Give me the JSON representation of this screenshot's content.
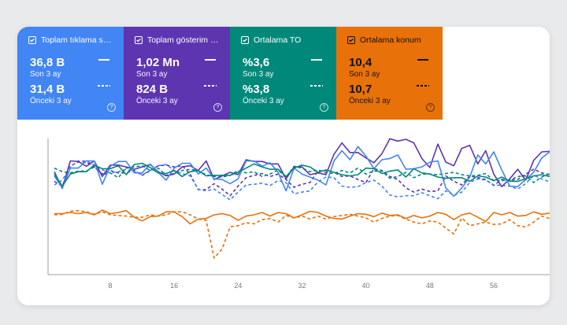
{
  "metrics": [
    {
      "title": "Toplam tıklama s…",
      "current": "36,8 B",
      "current_label": "Son 3 ay",
      "previous": "31,4 B",
      "previous_label": "Önceki 3 ay",
      "color": "#4285f4",
      "dark_text": false
    },
    {
      "title": "Toplam gösterim …",
      "current": "1,02 Mn",
      "current_label": "Son 3 ay",
      "previous": "824 B",
      "previous_label": "Önceki 3 ay",
      "color": "#5e35b1",
      "dark_text": false
    },
    {
      "title": "Ortalama TO",
      "current": "%3,6",
      "current_label": "Son 3 ay",
      "previous": "%3,8",
      "previous_label": "Önceki 3 ay",
      "color": "#00897b",
      "dark_text": false
    },
    {
      "title": "Ortalama konum",
      "current": "10,4",
      "current_label": "Son 3 ay",
      "previous": "10,7",
      "previous_label": "Önceki 3 ay",
      "color": "#e8710a",
      "dark_text": true
    }
  ],
  "chart_data": {
    "type": "line",
    "x_ticks": [
      "8",
      "16",
      "24",
      "32",
      "40",
      "48",
      "56"
    ],
    "xlim": [
      1,
      63
    ],
    "series": [
      {
        "color": "#5e35b1",
        "dash": false,
        "values": [
          62,
          34,
          80,
          79,
          71,
          80,
          54,
          73,
          73,
          70,
          66,
          70,
          74,
          62,
          55,
          58,
          70,
          72,
          64,
          80,
          49,
          55,
          61,
          57,
          82,
          79,
          79,
          75,
          75,
          50,
          70,
          70,
          57,
          60,
          57,
          91,
          110,
          94,
          94,
          85,
          77,
          92,
          117,
          113,
          116,
          110,
          84,
          69,
          108,
          78,
          72,
          101,
          106,
          75,
          97,
          58,
          37,
          50,
          66,
          48,
          81,
          95,
          96,
          80
        ]
      },
      {
        "color": "#4285f4",
        "dash": false,
        "values": [
          55,
          35,
          68,
          68,
          80,
          80,
          41,
          71,
          79,
          79,
          60,
          60,
          75,
          61,
          48,
          68,
          76,
          76,
          58,
          68,
          50,
          49,
          42,
          50,
          80,
          80,
          71,
          77,
          61,
          30,
          68,
          58,
          53,
          48,
          40,
          80,
          97,
          82,
          104,
          88,
          67,
          82,
          84,
          90,
          66,
          67,
          70,
          78,
          80,
          35,
          21,
          35,
          53,
          90,
          75,
          95,
          65,
          38,
          37,
          49,
          61,
          85,
          95,
          70
        ]
      },
      {
        "color": "#00897b",
        "dash": false,
        "values": [
          58,
          38,
          58,
          62,
          62,
          73,
          67,
          67,
          72,
          57,
          74,
          76,
          69,
          60,
          59,
          64,
          54,
          62,
          64,
          55,
          56,
          56,
          56,
          61,
          68,
          75,
          70,
          66,
          66,
          54,
          68,
          73,
          70,
          61,
          65,
          61,
          57,
          55,
          57,
          68,
          67,
          59,
          63,
          65,
          53,
          67,
          60,
          58,
          53,
          51,
          52,
          52,
          46,
          55,
          53,
          47,
          53,
          46,
          46,
          50,
          55,
          57,
          54,
          60
        ]
      },
      {
        "color": "#e8710a",
        "dash": false,
        "values": [
          -8,
          -8,
          -6,
          -8,
          -6,
          -10,
          -2,
          -8,
          -6,
          -3,
          -14,
          -20,
          -13,
          -12,
          -5,
          -5,
          -13,
          -25,
          -17,
          -16,
          -10,
          -8,
          -11,
          -19,
          -12,
          -10,
          -6,
          -12,
          -6,
          -8,
          -15,
          -10,
          -4,
          -6,
          -12,
          -16,
          -17,
          -12,
          -8,
          -9,
          -13,
          -7,
          -11,
          -10,
          -16,
          -11,
          -15,
          -12,
          -6,
          -9,
          -18,
          -10,
          -7,
          -14,
          -21,
          -6,
          -10,
          -6,
          -12,
          -11,
          -5,
          -9,
          -7,
          -8
        ]
      },
      {
        "color": "#5e35b1",
        "dash": true,
        "values": [
          46,
          38,
          72,
          78,
          78,
          70,
          58,
          64,
          60,
          60,
          64,
          56,
          64,
          72,
          73,
          70,
          72,
          58,
          32,
          32,
          42,
          33,
          22,
          38,
          52,
          56,
          59,
          54,
          58,
          49,
          36,
          41,
          44,
          63,
          64,
          61,
          54,
          55,
          49,
          44,
          67,
          64,
          54,
          49,
          35,
          28,
          33,
          29,
          30,
          55,
          46,
          40,
          55,
          52,
          49,
          39,
          49,
          48,
          49,
          58,
          66,
          60,
          57,
          45
        ]
      },
      {
        "color": "#4285f4",
        "dash": true,
        "values": [
          40,
          48,
          70,
          80,
          80,
          73,
          65,
          60,
          62,
          66,
          62,
          57,
          64,
          72,
          74,
          64,
          59,
          55,
          33,
          30,
          33,
          24,
          15,
          28,
          40,
          41,
          43,
          39,
          47,
          44,
          25,
          28,
          30,
          45,
          53,
          52,
          38,
          36,
          37,
          44,
          48,
          38,
          23,
          20,
          22,
          22,
          27,
          22,
          17,
          30,
          23,
          28,
          44,
          50,
          48,
          40,
          39,
          38,
          33,
          42,
          56,
          50,
          45,
          35
        ]
      },
      {
        "color": "#00897b",
        "dash": true,
        "values": [
          68,
          62,
          60,
          63,
          63,
          70,
          57,
          60,
          52,
          68,
          70,
          72,
          64,
          68,
          56,
          59,
          64,
          66,
          63,
          57,
          54,
          53,
          56,
          64,
          60,
          62,
          54,
          58,
          65,
          52,
          71,
          68,
          62,
          65,
          60,
          59,
          64,
          60,
          68,
          58,
          63,
          63,
          51,
          54,
          61,
          52,
          58,
          58,
          57,
          59,
          61,
          57,
          55,
          56,
          59,
          47,
          47,
          48,
          54,
          55,
          44,
          53,
          59,
          62
        ]
      },
      {
        "color": "#e8710a",
        "dash": true,
        "values": [
          -10,
          -9,
          -4,
          -3,
          -5,
          -9,
          -5,
          -10,
          -11,
          -12,
          -14,
          -14,
          -10,
          -12,
          -10,
          -5,
          -5,
          -10,
          -17,
          -19,
          -82,
          -67,
          -30,
          -28,
          -23,
          -25,
          -18,
          -16,
          -22,
          -11,
          -15,
          -12,
          -17,
          -12,
          -17,
          -13,
          -11,
          -9,
          -12,
          -15,
          -22,
          -16,
          -12,
          -11,
          -17,
          -22,
          -25,
          -20,
          -22,
          -32,
          -42,
          -15,
          -28,
          -25,
          -22,
          -26,
          -25,
          -18,
          -28,
          -30,
          -22,
          -12,
          -16,
          -9
        ]
      }
    ]
  }
}
